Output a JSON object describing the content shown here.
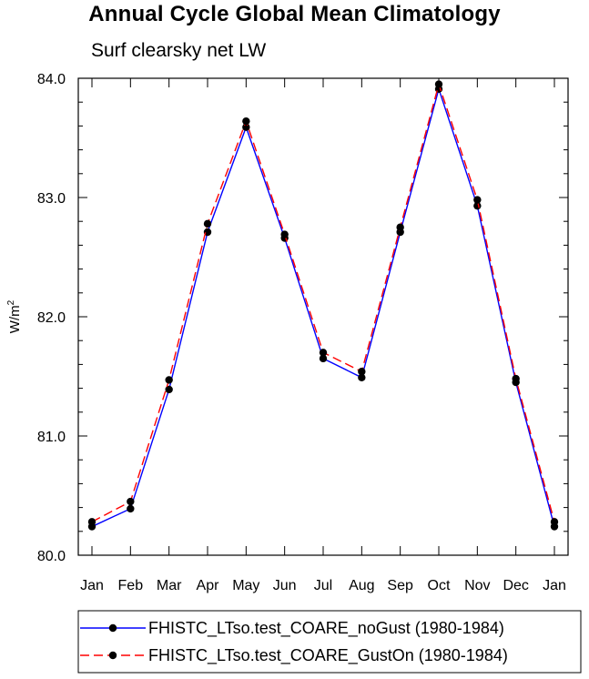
{
  "chart_data": {
    "type": "line",
    "title": "Annual Cycle Global Mean Climatology",
    "subtitle": "Surf clearsky net LW",
    "xlabel": "",
    "ylabel": "W/m",
    "ylabel_superscript": "2",
    "categories": [
      "Jan",
      "Feb",
      "Mar",
      "Apr",
      "May",
      "Jun",
      "Jul",
      "Aug",
      "Sep",
      "Oct",
      "Nov",
      "Dec",
      "Jan"
    ],
    "ylim": [
      80.0,
      84.0
    ],
    "yticks": [
      80.0,
      81.0,
      82.0,
      83.0,
      84.0
    ],
    "ytick_labels": [
      "80.0",
      "81.0",
      "82.0",
      "83.0",
      "84.0"
    ],
    "grid": false,
    "legend_position": "bottom",
    "series": [
      {
        "name": "FHISTC_LTso.test_COARE_noGust (1980-1984)",
        "color": "#0000ff",
        "dash": "solid",
        "values": [
          80.24,
          80.39,
          81.39,
          82.71,
          83.59,
          82.66,
          81.65,
          81.49,
          82.71,
          83.91,
          82.93,
          81.45,
          80.24
        ]
      },
      {
        "name": "FHISTC_LTso.test_COARE_GustOn (1980-1984)",
        "color": "#ff0000",
        "dash": "dashed",
        "values": [
          80.28,
          80.45,
          81.47,
          82.78,
          83.64,
          82.69,
          81.7,
          81.54,
          82.75,
          83.95,
          82.98,
          81.48,
          80.28
        ]
      }
    ]
  }
}
